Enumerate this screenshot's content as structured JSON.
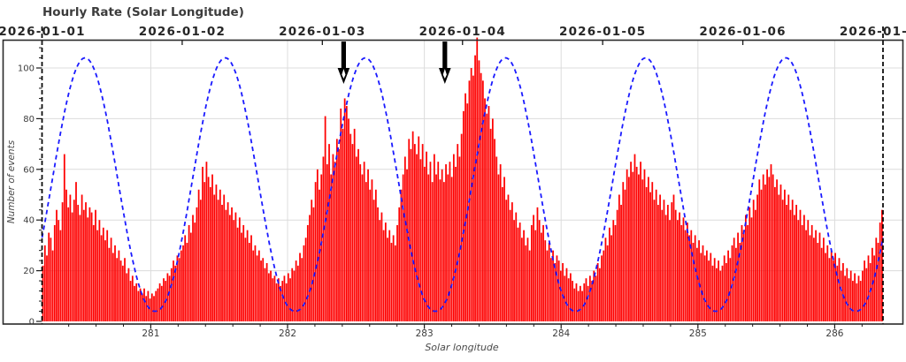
{
  "title": "Hourly Rate (Solar Longitude)",
  "y_axis": {
    "title": "Number of events",
    "ticks": [
      0,
      20,
      40,
      60,
      80,
      100
    ],
    "minor_step": 4,
    "max_visible": 111
  },
  "x_axis": {
    "title": "Solar longitude",
    "ticks": [
      281,
      282,
      283,
      284,
      285,
      286
    ],
    "minor_step": 0.2,
    "range": [
      280.205,
      286.353
    ]
  },
  "top_axis": {
    "labels": [
      "2026-01-01",
      "2026-01-02",
      "2026-01-03",
      "2026-01-04",
      "2026-01-05",
      "2026-01-06",
      "2026-01-07"
    ]
  },
  "colors": {
    "bars": "#fe0000",
    "curve": "#1a1aff",
    "boundary": "#000000",
    "grid": "#dcdcdc",
    "frame": "#2a2a2a",
    "tick": "#1a1a1a",
    "tick_label": "#3c3c3c",
    "date_label": "#262626",
    "arrow": "#000000"
  },
  "chart_data": {
    "type": "bar",
    "title": "Hourly Rate (Solar Longitude)",
    "xlabel": "Solar longitude",
    "ylabel": "Number of events",
    "x_range_solar_longitude": [
      280.205,
      286.353
    ],
    "x_range_dates": [
      "2026-01-01",
      "2026-01-07"
    ],
    "ylim": [
      0,
      111
    ],
    "grid": true,
    "bins_per_day": 72,
    "bin_minutes": 20,
    "values": [
      22,
      30,
      26,
      35,
      33,
      28,
      38,
      44,
      40,
      36,
      47,
      66,
      52,
      45,
      50,
      43,
      48,
      55,
      46,
      42,
      50,
      44,
      47,
      41,
      45,
      43,
      38,
      44,
      36,
      40,
      34,
      37,
      32,
      36,
      29,
      33,
      27,
      30,
      25,
      28,
      24,
      22,
      25,
      19,
      21,
      16,
      18,
      14,
      15,
      12,
      13,
      11,
      13,
      10,
      12,
      9,
      11,
      10,
      12,
      13,
      15,
      14,
      17,
      16,
      19,
      18,
      21,
      24,
      22,
      26,
      25,
      28,
      30,
      34,
      31,
      38,
      35,
      42,
      39,
      45,
      52,
      48,
      61,
      55,
      63,
      57,
      53,
      58,
      50,
      54,
      48,
      52,
      46,
      50,
      44,
      47,
      42,
      45,
      40,
      43,
      37,
      41,
      35,
      38,
      33,
      36,
      31,
      34,
      28,
      30,
      26,
      28,
      24,
      25,
      21,
      23,
      19,
      20,
      17,
      18,
      15,
      17,
      14,
      16,
      18,
      15,
      19,
      17,
      21,
      20,
      24,
      22,
      27,
      25,
      30,
      33,
      38,
      42,
      48,
      45,
      55,
      60,
      52,
      58,
      65,
      81,
      62,
      70,
      58,
      66,
      63,
      72,
      68,
      84,
      76,
      88,
      85,
      80,
      74,
      70,
      76,
      65,
      68,
      62,
      58,
      63,
      55,
      60,
      52,
      56,
      48,
      52,
      45,
      40,
      43,
      36,
      39,
      33,
      36,
      31,
      34,
      30,
      38,
      45,
      52,
      58,
      65,
      60,
      72,
      68,
      75,
      70,
      66,
      73,
      64,
      70,
      61,
      67,
      58,
      63,
      55,
      66,
      58,
      63,
      56,
      60,
      55,
      62,
      58,
      63,
      57,
      66,
      61,
      70,
      65,
      74,
      83,
      90,
      86,
      95,
      100,
      97,
      105,
      112,
      103,
      98,
      95,
      88,
      82,
      85,
      76,
      80,
      72,
      65,
      58,
      62,
      53,
      57,
      48,
      50,
      44,
      47,
      40,
      43,
      37,
      39,
      33,
      36,
      30,
      33,
      28,
      38,
      42,
      36,
      45,
      40,
      35,
      38,
      32,
      28,
      31,
      25,
      28,
      23,
      26,
      24,
      20,
      23,
      18,
      21,
      17,
      19,
      16,
      13,
      15,
      12,
      14,
      12,
      15,
      17,
      14,
      18,
      16,
      20,
      18,
      23,
      21,
      26,
      28,
      33,
      30,
      37,
      34,
      40,
      38,
      44,
      50,
      46,
      55,
      52,
      60,
      57,
      63,
      59,
      66,
      61,
      58,
      63,
      56,
      60,
      53,
      57,
      51,
      55,
      48,
      52,
      46,
      50,
      44,
      48,
      42,
      46,
      40,
      47,
      50,
      44,
      40,
      43,
      38,
      41,
      36,
      39,
      34,
      36,
      31,
      34,
      29,
      32,
      27,
      30,
      26,
      28,
      24,
      27,
      22,
      25,
      21,
      24,
      20,
      22,
      26,
      23,
      28,
      25,
      30,
      33,
      29,
      35,
      31,
      38,
      36,
      42,
      38,
      45,
      41,
      48,
      44,
      50,
      56,
      52,
      58,
      54,
      60,
      57,
      62,
      58,
      53,
      56,
      50,
      54,
      48,
      52,
      46,
      50,
      44,
      48,
      42,
      46,
      40,
      44,
      38,
      42,
      36,
      40,
      34,
      38,
      33,
      36,
      31,
      35,
      29,
      33,
      27,
      30,
      25,
      28,
      24,
      27,
      22,
      25,
      20,
      23,
      18,
      21,
      17,
      20,
      16,
      19,
      15,
      18,
      16,
      20,
      24,
      21,
      26,
      23,
      29,
      26,
      33,
      31,
      39,
      44
    ],
    "overlay_curve": {
      "name": "diurnal activity model",
      "style": "dashed",
      "min": 4,
      "max": 104,
      "period_days": 1,
      "peak_day_fraction": 0.307,
      "shape_exponent": 1.1
    },
    "annotations": {
      "arrows_solar_longitude": [
        282.41,
        283.15
      ]
    },
    "boundary_lines_solar_longitude": [
      280.205,
      286.353
    ]
  }
}
